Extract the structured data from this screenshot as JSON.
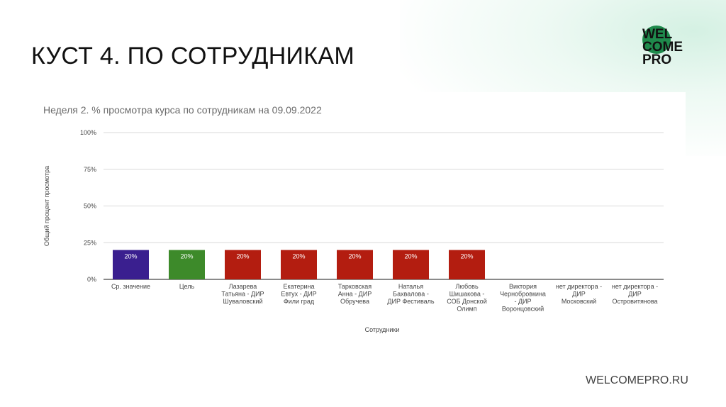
{
  "slide": {
    "title": "КУСТ 4. ПО СОТРУДНИКАМ",
    "footer": "WELCOMEPRO.RU",
    "logo": {
      "lines": [
        "WEL",
        "COME",
        "PRO"
      ],
      "color": "#1f8a4c"
    }
  },
  "chart_data": {
    "type": "bar",
    "title": "Неделя 2. % просмотра курса по сотрудникам на 09.09.2022",
    "xlabel": "Сотрудники",
    "ylabel": "Общий процент просмотра",
    "ylim": [
      0,
      100
    ],
    "yticks": [
      "0%",
      "25%",
      "50%",
      "75%",
      "100%"
    ],
    "grid": true,
    "categories": [
      [
        "Ср. значение"
      ],
      [
        "Цель"
      ],
      [
        "Лазарева",
        "Татьяна - ДИР",
        "Шуваловский"
      ],
      [
        "Екатерина",
        "Евтух - ДИР",
        "Фили град"
      ],
      [
        "Тарковская",
        "Анна - ДИР",
        "Обручева"
      ],
      [
        "Наталья",
        "Бахвалова -",
        "ДИР Фестиваль"
      ],
      [
        "Любовь",
        "Шишакова -",
        "СОБ Донской",
        "Олимп"
      ],
      [
        "Виктория",
        "Чернобровкина",
        "- ДИР",
        "Воронцовский"
      ],
      [
        "нет директора -",
        "ДИР",
        "Московский"
      ],
      [
        "нет директора -",
        "ДИР",
        "Островитянова"
      ]
    ],
    "values": [
      20,
      20,
      20,
      20,
      20,
      20,
      20,
      null,
      null,
      null
    ],
    "data_labels": [
      "20%",
      "20%",
      "20%",
      "20%",
      "20%",
      "20%",
      "20%",
      "",
      "",
      ""
    ],
    "colors": [
      "#3a1f8f",
      "#3d8a2a",
      "#b31d10",
      "#b31d10",
      "#b31d10",
      "#b31d10",
      "#b31d10",
      "#b31d10",
      "#b31d10",
      "#b31d10"
    ]
  }
}
